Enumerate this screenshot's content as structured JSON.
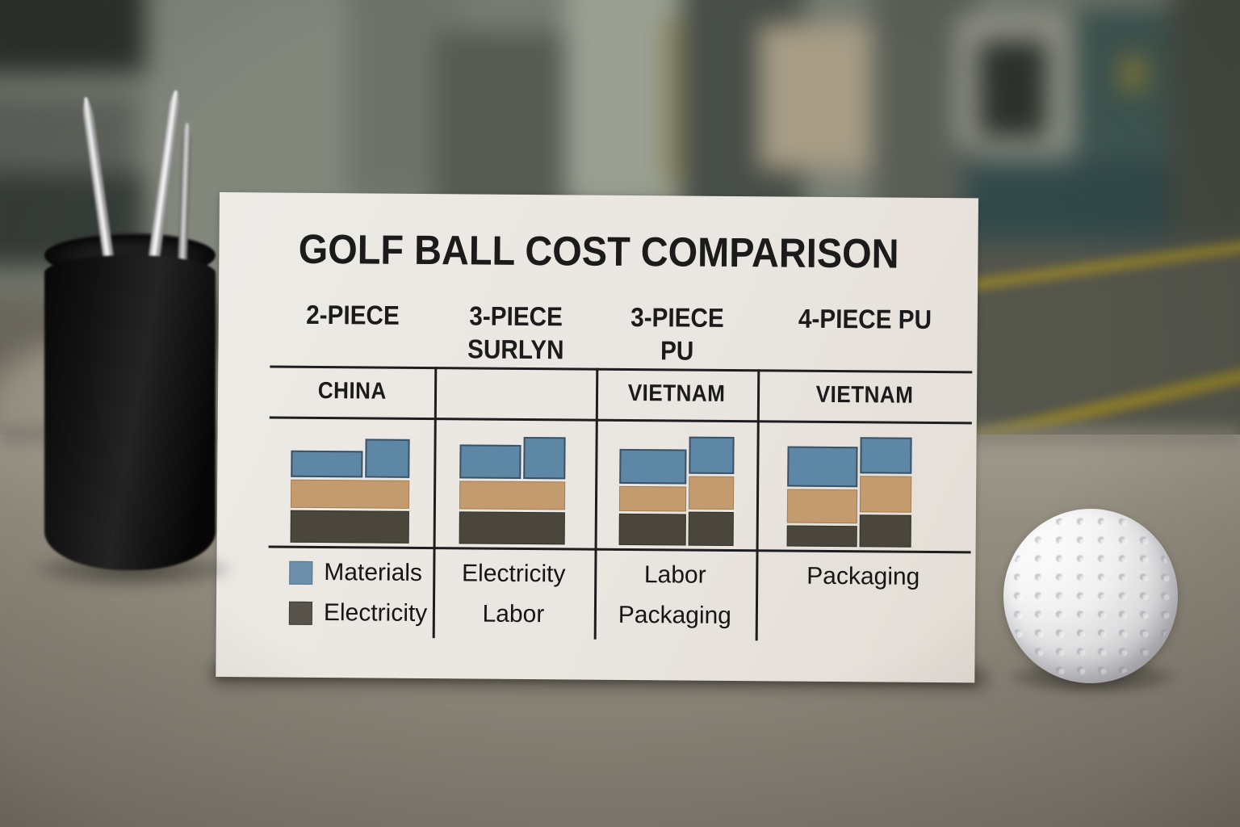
{
  "card": {
    "title": "GOLF BALL COST COMPARISON",
    "columns": [
      {
        "header": "2-PIECE",
        "header_lines": [
          "2-PIECE"
        ],
        "country": "CHINA",
        "legend": [
          {
            "swatch": "blue",
            "label": "Materials"
          },
          {
            "swatch": "dark",
            "label": "Electricity"
          }
        ]
      },
      {
        "header": "3-PIECE SURLYN",
        "header_lines": [
          "3-PIECE",
          "SURLYN"
        ],
        "country": "",
        "legend": [
          {
            "label": "Electricity"
          },
          {
            "label": "Labor"
          }
        ]
      },
      {
        "header": "3-PIECE PU",
        "header_lines": [
          "3-PIECE",
          "PU"
        ],
        "country": "VIETNAM",
        "legend": [
          {
            "label": "Labor"
          },
          {
            "label": "Packaging"
          }
        ]
      },
      {
        "header": "4-PIECE PU",
        "header_lines": [
          "4-PIECE PU"
        ],
        "country": "VIETNAM",
        "legend": [
          {
            "label": "Packaging"
          }
        ]
      }
    ],
    "colors": {
      "card_bg": "#eae6e1",
      "text": "#1b1b1b",
      "grid_line": "#1e1e1e",
      "bar_blue": "#5e87a5",
      "bar_tan": "#c49b6e",
      "bar_dark": "#4a463c",
      "legend_swatch_blue": "#6c8fac",
      "legend_swatch_dark": "#57534a"
    }
  },
  "chart_data": {
    "type": "bar",
    "subtype": "stacked step bars; each column shows one stacked bar with a narrower, taller right step",
    "note": "No numeric axis or value labels are shown on the card; segment values are relative heights in depicted pixels.",
    "segments_bottom_up": [
      "dark",
      "tan",
      "blue"
    ],
    "legend_named_segments": {
      "blue": "Materials",
      "dark": "Electricity"
    },
    "charts": [
      {
        "category": "2-PIECE",
        "country": "CHINA",
        "lower_segments_merged": true,
        "left": {
          "dark": 40,
          "tan": 35,
          "blue": 33
        },
        "right": {
          "dark": 40,
          "tan": 35,
          "blue": 48
        }
      },
      {
        "category": "3-PIECE SURLYN",
        "country": "",
        "lower_segments_merged": true,
        "left": {
          "dark": 40,
          "tan": 35,
          "blue": 42
        },
        "right": {
          "dark": 40,
          "tan": 35,
          "blue": 52
        }
      },
      {
        "category": "3-PIECE PU",
        "country": "VIETNAM",
        "lower_segments_merged": false,
        "left": {
          "dark": 39,
          "tan": 31,
          "blue": 43
        },
        "right": {
          "dark": 42,
          "tan": 41,
          "blue": 46
        }
      },
      {
        "category": "4-PIECE PU",
        "country": "VIETNAM",
        "lower_segments_merged": false,
        "left": {
          "dark": 26,
          "tan": 42,
          "blue": 50
        },
        "right": {
          "dark": 40,
          "tan": 45,
          "blue": 45
        }
      }
    ]
  },
  "scene": {
    "objects": [
      "blurred factory background",
      "gray desk surface",
      "black pen cup",
      "silver pens",
      "white golf ball",
      "cost comparison card"
    ]
  }
}
